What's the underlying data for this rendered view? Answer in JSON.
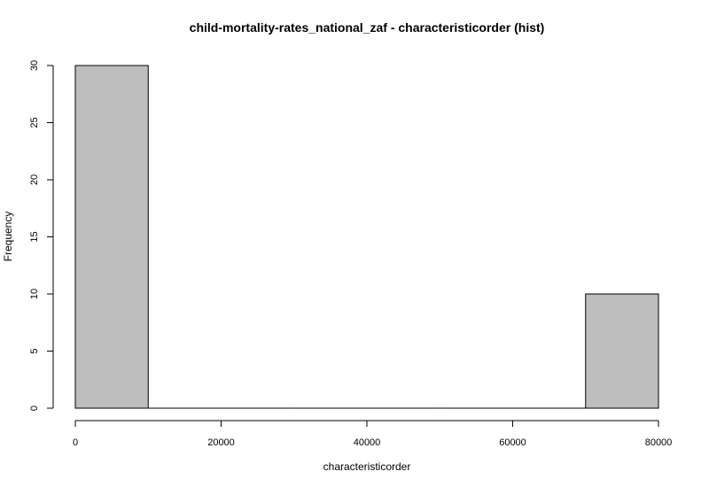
{
  "chart_data": {
    "type": "bar",
    "subtype": "histogram",
    "title": "child-mortality-rates_national_zaf - characteristicorder (hist)",
    "xlabel": "characteristicorder",
    "ylabel": "Frequency",
    "bins": [
      {
        "start": 0,
        "end": 10000,
        "count": 30
      },
      {
        "start": 10000,
        "end": 20000,
        "count": 0
      },
      {
        "start": 20000,
        "end": 30000,
        "count": 0
      },
      {
        "start": 30000,
        "end": 40000,
        "count": 0
      },
      {
        "start": 40000,
        "end": 50000,
        "count": 0
      },
      {
        "start": 50000,
        "end": 60000,
        "count": 0
      },
      {
        "start": 60000,
        "end": 70000,
        "count": 0
      },
      {
        "start": 70000,
        "end": 80000,
        "count": 10
      }
    ],
    "xlim": [
      0,
      80000
    ],
    "ylim": [
      0,
      30
    ],
    "x_ticks": [
      0,
      20000,
      40000,
      60000,
      80000
    ],
    "y_ticks": [
      0,
      5,
      10,
      15,
      20,
      25,
      30
    ],
    "bar_color": "#bebebe",
    "grid": false
  }
}
